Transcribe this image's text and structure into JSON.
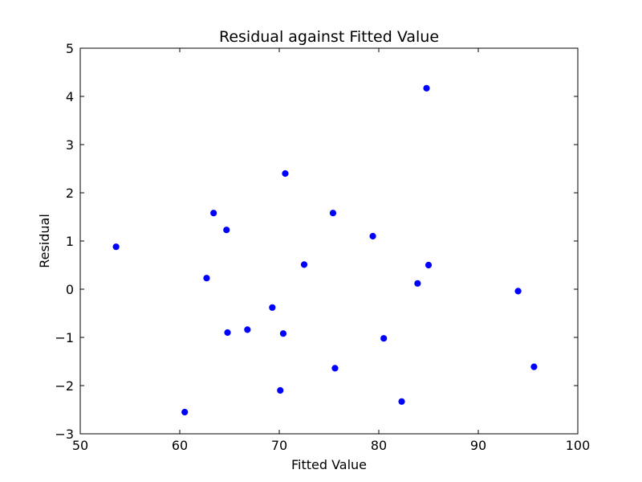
{
  "chart_data": {
    "type": "scatter",
    "title": "Residual against Fitted Value",
    "xlabel": "Fitted Value",
    "ylabel": "Residual",
    "xlim": [
      50,
      100
    ],
    "ylim": [
      -3,
      5
    ],
    "xticks": [
      50,
      60,
      70,
      80,
      90,
      100
    ],
    "yticks": [
      -3,
      -2,
      -1,
      0,
      1,
      2,
      3,
      4,
      5
    ],
    "xtick_labels": [
      "50",
      "60",
      "70",
      "80",
      "90",
      "100"
    ],
    "ytick_labels": [
      "−3",
      "−2",
      "−1",
      "0",
      "1",
      "2",
      "3",
      "4",
      "5"
    ],
    "grid": false,
    "marker_color": "#0000ff",
    "points": [
      {
        "x": 53.6,
        "y": 0.88
      },
      {
        "x": 60.5,
        "y": -2.55
      },
      {
        "x": 62.7,
        "y": 0.23
      },
      {
        "x": 63.4,
        "y": 1.58
      },
      {
        "x": 64.7,
        "y": 1.23
      },
      {
        "x": 64.8,
        "y": -0.9
      },
      {
        "x": 66.8,
        "y": -0.84
      },
      {
        "x": 69.3,
        "y": -0.38
      },
      {
        "x": 70.1,
        "y": -2.1
      },
      {
        "x": 70.4,
        "y": -0.92
      },
      {
        "x": 70.6,
        "y": 2.4
      },
      {
        "x": 72.5,
        "y": 0.51
      },
      {
        "x": 75.4,
        "y": 1.58
      },
      {
        "x": 75.6,
        "y": -1.64
      },
      {
        "x": 79.4,
        "y": 1.1
      },
      {
        "x": 80.5,
        "y": -1.02
      },
      {
        "x": 82.3,
        "y": -2.33
      },
      {
        "x": 83.9,
        "y": 0.12
      },
      {
        "x": 84.8,
        "y": 4.17
      },
      {
        "x": 85.0,
        "y": 0.5
      },
      {
        "x": 94.0,
        "y": -0.04
      },
      {
        "x": 95.6,
        "y": -1.61
      }
    ]
  }
}
